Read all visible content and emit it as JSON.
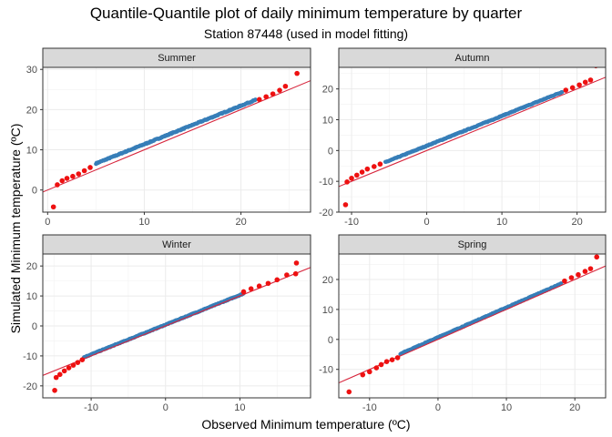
{
  "title": "Quantile-Quantile plot of daily minimum temperature by quarter",
  "subtitle": "Station 87448 (used in model fitting)",
  "xlabel": "Observed Minimum temperature (ºC)",
  "ylabel": "Simulated Minimum temperature (ºC)",
  "colors": {
    "tail_points": "#ee1111",
    "center_points": "#377eb8",
    "reference_line": "#d7263d",
    "strip_fill": "#d9d9d9",
    "panel_border": "#333333",
    "grid": "#ebebeb"
  },
  "chart_data": [
    {
      "type": "scatter",
      "panel": "Summer",
      "xlim": [
        -0.5,
        27.2
      ],
      "ylim": [
        -5.5,
        30.5
      ],
      "xticks": [
        0,
        10,
        20
      ],
      "yticks": [
        0,
        10,
        20,
        30
      ],
      "reference_line": {
        "slope": 1,
        "intercept": 0
      },
      "tail_points": [
        [
          0.6,
          -4.2
        ],
        [
          1.0,
          1.3
        ],
        [
          1.5,
          2.3
        ],
        [
          2.0,
          2.9
        ],
        [
          2.6,
          3.4
        ],
        [
          3.2,
          4.0
        ],
        [
          3.8,
          4.8
        ],
        [
          4.4,
          5.6
        ],
        [
          21.9,
          22.5
        ],
        [
          22.6,
          23.2
        ],
        [
          23.3,
          23.9
        ],
        [
          24.0,
          24.8
        ],
        [
          24.6,
          25.8
        ],
        [
          25.8,
          29.0
        ]
      ],
      "center_range": [
        [
          5,
          6.6
        ],
        [
          21.5,
          22.4
        ]
      ]
    },
    {
      "type": "scatter",
      "panel": "Autumn",
      "xlim": [
        -11.7,
        23.8
      ],
      "ylim": [
        -20,
        27
      ],
      "xticks": [
        -10,
        0,
        10,
        20
      ],
      "yticks": [
        -20,
        -10,
        0,
        10,
        20
      ],
      "reference_line": {
        "slope": 1,
        "intercept": 0
      },
      "tail_points": [
        [
          -10.8,
          -17.6
        ],
        [
          -10.6,
          -10.2
        ],
        [
          -10.0,
          -9.0
        ],
        [
          -9.3,
          -8.0
        ],
        [
          -8.6,
          -7.0
        ],
        [
          -7.9,
          -6.0
        ],
        [
          -7.0,
          -5.2
        ],
        [
          -6.2,
          -4.4
        ],
        [
          18.5,
          19.6
        ],
        [
          19.4,
          20.4
        ],
        [
          20.3,
          21.3
        ],
        [
          21.1,
          22.2
        ],
        [
          21.8,
          22.9
        ],
        [
          22.5,
          27.5
        ]
      ],
      "center_range": [
        [
          -5.5,
          -3.8
        ],
        [
          18.0,
          19.0
        ]
      ]
    },
    {
      "type": "scatter",
      "panel": "Winter",
      "xlim": [
        -16.5,
        19.5
      ],
      "ylim": [
        -24,
        24
      ],
      "xticks": [
        -10,
        0,
        10
      ],
      "yticks": [
        -20,
        -10,
        0,
        10,
        20
      ],
      "reference_line": {
        "slope": 1,
        "intercept": 0
      },
      "tail_points": [
        [
          -14.9,
          -21.5
        ],
        [
          -14.7,
          -17.2
        ],
        [
          -14.2,
          -16.2
        ],
        [
          -13.6,
          -15.0
        ],
        [
          -13.0,
          -14.0
        ],
        [
          -12.4,
          -13.1
        ],
        [
          -11.8,
          -12.2
        ],
        [
          -11.2,
          -11.3
        ],
        [
          10.5,
          11.4
        ],
        [
          11.5,
          12.4
        ],
        [
          12.6,
          13.3
        ],
        [
          13.8,
          14.2
        ],
        [
          15.0,
          15.4
        ],
        [
          16.3,
          17.0
        ],
        [
          17.5,
          17.4
        ],
        [
          17.6,
          21.0
        ]
      ],
      "center_range": [
        [
          -11,
          -10.5
        ],
        [
          10.5,
          10.8
        ]
      ]
    },
    {
      "type": "scatter",
      "panel": "Spring",
      "xlim": [
        -14.5,
        24.5
      ],
      "ylim": [
        -19.5,
        28.5
      ],
      "xticks": [
        -10,
        0,
        10,
        20
      ],
      "yticks": [
        -10,
        0,
        10,
        20
      ],
      "reference_line": {
        "slope": 1,
        "intercept": 0
      },
      "tail_points": [
        [
          -13.0,
          -17.5
        ],
        [
          -11.0,
          -11.8
        ],
        [
          -10.0,
          -10.8
        ],
        [
          -9.0,
          -9.5
        ],
        [
          -8.3,
          -8.4
        ],
        [
          -7.5,
          -7.4
        ],
        [
          -6.7,
          -6.8
        ],
        [
          -5.9,
          -6.1
        ],
        [
          18.5,
          19.5
        ],
        [
          19.5,
          20.6
        ],
        [
          20.5,
          21.6
        ],
        [
          21.5,
          22.7
        ],
        [
          22.3,
          23.6
        ],
        [
          23.2,
          27.5
        ]
      ],
      "center_range": [
        [
          -5.5,
          -4.8
        ],
        [
          18.0,
          18.6
        ]
      ]
    }
  ]
}
